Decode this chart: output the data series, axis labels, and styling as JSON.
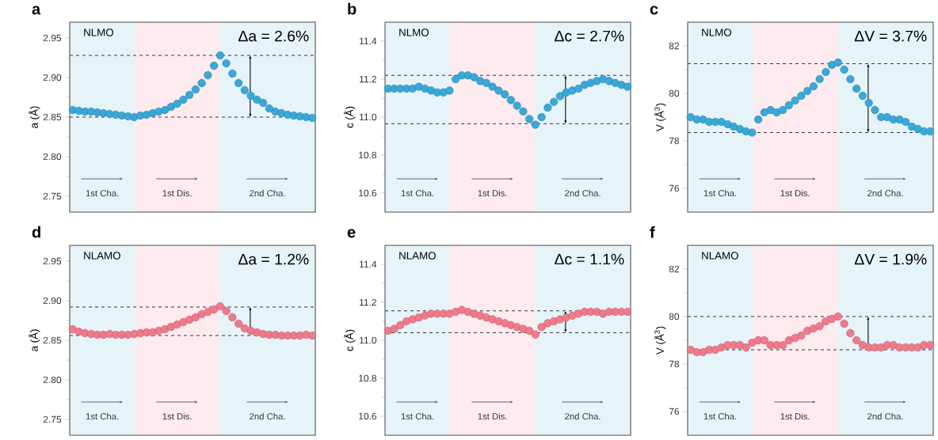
{
  "chart_data": [
    {
      "type": "scatter",
      "title": "a",
      "ylabel": "a (Å)",
      "marker": "circle",
      "categories": [
        null,
        null,
        null,
        null,
        null,
        null,
        null,
        null,
        null,
        null,
        null,
        null,
        null,
        null,
        null,
        null,
        null,
        null,
        null,
        null,
        null,
        null,
        null,
        null,
        null,
        null,
        null,
        null,
        null,
        null,
        null,
        null,
        null,
        null,
        null,
        null,
        null,
        null,
        null,
        null
      ],
      "series": [
        {
          "color": "#3aa8d8",
          "values": [
            2.859,
            2.858,
            2.857,
            2.857,
            2.856,
            2.855,
            2.854,
            2.853,
            2.852,
            2.851,
            2.85,
            2.852,
            2.853,
            2.855,
            2.857,
            2.859,
            2.863,
            2.867,
            2.872,
            2.878,
            2.885,
            2.893,
            2.903,
            2.915,
            2.928,
            2.918,
            2.905,
            2.893,
            2.884,
            2.877,
            2.872,
            2.868,
            2.861,
            2.857,
            2.855,
            2.853,
            2.852,
            2.851,
            2.85,
            2.849
          ]
        }
      ],
      "ylim": [
        2.73,
        2.97
      ],
      "yticks": [
        {
          "value": 2.75,
          "label": "2.75"
        },
        {
          "value": 2.8,
          "label": "2.80"
        },
        {
          "value": 2.85,
          "label": "2.85"
        },
        {
          "value": 2.9,
          "label": "2.90"
        },
        {
          "value": 2.95,
          "label": "2.95"
        }
      ],
      "ref_lines": [
        {
          "axis": "y",
          "value": 2.928,
          "line_style": "dashed"
        },
        {
          "axis": "y",
          "value": 2.85,
          "line_style": "dashed"
        }
      ],
      "annotations": [
        "NLMO",
        "Δa = 2.6%",
        "1st Cha.",
        "1st Dis.",
        "2nd Cha."
      ]
    },
    {
      "type": "scatter",
      "title": "b",
      "ylabel": "c (Å)",
      "marker": "circle",
      "categories": [
        null,
        null,
        null,
        null,
        null,
        null,
        null,
        null,
        null,
        null,
        null,
        null,
        null,
        null,
        null,
        null,
        null,
        null,
        null,
        null,
        null,
        null,
        null,
        null,
        null,
        null,
        null,
        null,
        null,
        null,
        null,
        null,
        null,
        null,
        null,
        null,
        null,
        null,
        null,
        null
      ],
      "series": [
        {
          "color": "#3aa8d8",
          "values": [
            11.15,
            11.15,
            11.15,
            11.15,
            11.15,
            11.16,
            11.15,
            11.14,
            11.13,
            11.13,
            11.14,
            11.2,
            11.22,
            11.22,
            11.21,
            11.19,
            11.18,
            11.16,
            11.14,
            11.12,
            11.09,
            11.06,
            11.03,
            10.99,
            10.96,
            11.0,
            11.05,
            11.08,
            11.11,
            11.13,
            11.14,
            11.15,
            11.17,
            11.18,
            11.19,
            11.2,
            11.19,
            11.18,
            11.17,
            11.16
          ]
        }
      ],
      "ylim": [
        10.5,
        11.5
      ],
      "yticks": [
        {
          "value": 10.6,
          "label": "10.6"
        },
        {
          "value": 10.8,
          "label": "10.8"
        },
        {
          "value": 11.0,
          "label": "11.0"
        },
        {
          "value": 11.2,
          "label": "11.2"
        },
        {
          "value": 11.4,
          "label": "11.4"
        }
      ],
      "ref_lines": [
        {
          "axis": "y",
          "value": 11.22,
          "line_style": "dashed"
        },
        {
          "axis": "y",
          "value": 10.965,
          "line_style": "dashed"
        }
      ],
      "annotations": [
        "NLMO",
        "Δc = 2.7%",
        "1st Cha.",
        "1st Dis.",
        "2nd Cha."
      ]
    },
    {
      "type": "scatter",
      "title": "c",
      "ylabel": "V (Å$^{3}$)",
      "marker": "circle",
      "categories": [
        null,
        null,
        null,
        null,
        null,
        null,
        null,
        null,
        null,
        null,
        null,
        null,
        null,
        null,
        null,
        null,
        null,
        null,
        null,
        null,
        null,
        null,
        null,
        null,
        null,
        null,
        null,
        null,
        null,
        null,
        null,
        null,
        null,
        null,
        null,
        null,
        null,
        null,
        null,
        null
      ],
      "series": [
        {
          "color": "#3aa8d8",
          "values": [
            79.0,
            78.9,
            78.9,
            78.8,
            78.8,
            78.8,
            78.7,
            78.6,
            78.5,
            78.4,
            78.35,
            78.9,
            79.2,
            79.3,
            79.2,
            79.3,
            79.5,
            79.7,
            79.9,
            80.1,
            80.3,
            80.6,
            80.9,
            81.2,
            81.3,
            81.0,
            80.6,
            80.2,
            79.9,
            79.6,
            79.3,
            79.0,
            79.0,
            78.9,
            78.9,
            78.8,
            78.6,
            78.5,
            78.4,
            78.4
          ]
        }
      ],
      "ylim": [
        75,
        83
      ],
      "yticks": [
        76,
        78,
        80,
        82
      ],
      "ref_lines": [
        {
          "axis": "y",
          "value": 81.25,
          "line_style": "dashed"
        },
        {
          "axis": "y",
          "value": 78.35,
          "line_style": "dashed"
        }
      ],
      "annotations": [
        "NLMO",
        "ΔV = 3.7%",
        "1st Cha.",
        "1st Dis.",
        "2nd Cha."
      ]
    },
    {
      "type": "scatter",
      "title": "d",
      "ylabel": "a (Å)",
      "marker": "circle",
      "categories": [
        null,
        null,
        null,
        null,
        null,
        null,
        null,
        null,
        null,
        null,
        null,
        null,
        null,
        null,
        null,
        null,
        null,
        null,
        null,
        null,
        null,
        null,
        null,
        null,
        null,
        null,
        null,
        null,
        null,
        null,
        null,
        null,
        null,
        null,
        null,
        null,
        null,
        null,
        null,
        null
      ],
      "series": [
        {
          "color": "#f07a8a",
          "values": [
            2.864,
            2.861,
            2.859,
            2.858,
            2.857,
            2.857,
            2.858,
            2.857,
            2.857,
            2.857,
            2.858,
            2.859,
            2.86,
            2.86,
            2.862,
            2.864,
            2.867,
            2.87,
            2.873,
            2.876,
            2.879,
            2.883,
            2.886,
            2.889,
            2.893,
            2.887,
            2.879,
            2.871,
            2.865,
            2.862,
            2.86,
            2.858,
            2.857,
            2.857,
            2.856,
            2.856,
            2.856,
            2.856,
            2.857,
            2.856
          ]
        }
      ],
      "ylim": [
        2.73,
        2.97
      ],
      "yticks": [
        {
          "value": 2.75,
          "label": "2.75"
        },
        {
          "value": 2.8,
          "label": "2.80"
        },
        {
          "value": 2.85,
          "label": "2.85"
        },
        {
          "value": 2.9,
          "label": "2.90"
        },
        {
          "value": 2.95,
          "label": "2.95"
        }
      ],
      "ref_lines": [
        {
          "axis": "y",
          "value": 2.892,
          "line_style": "dashed"
        },
        {
          "axis": "y",
          "value": 2.856,
          "line_style": "dashed"
        }
      ],
      "annotations": [
        "NLAMO",
        "Δa = 1.2%",
        "1st Cha.",
        "1st Dis.",
        "2nd Cha."
      ]
    },
    {
      "type": "scatter",
      "title": "e",
      "ylabel": "c (Å)",
      "marker": "circle",
      "categories": [
        null,
        null,
        null,
        null,
        null,
        null,
        null,
        null,
        null,
        null,
        null,
        null,
        null,
        null,
        null,
        null,
        null,
        null,
        null,
        null,
        null,
        null,
        null,
        null,
        null,
        null,
        null,
        null,
        null,
        null,
        null,
        null,
        null,
        null,
        null,
        null,
        null,
        null,
        null,
        null
      ],
      "series": [
        {
          "color": "#f07a8a",
          "values": [
            11.05,
            11.06,
            11.08,
            11.1,
            11.11,
            11.12,
            11.13,
            11.14,
            11.14,
            11.14,
            11.14,
            11.15,
            11.16,
            11.15,
            11.14,
            11.13,
            11.12,
            11.11,
            11.1,
            11.09,
            11.08,
            11.07,
            11.06,
            11.05,
            11.03,
            11.07,
            11.09,
            11.1,
            11.11,
            11.12,
            11.13,
            11.14,
            11.15,
            11.15,
            11.15,
            11.14,
            11.15,
            11.15,
            11.15,
            11.15
          ]
        }
      ],
      "ylim": [
        10.5,
        11.5
      ],
      "yticks": [
        {
          "value": 10.6,
          "label": "10.6"
        },
        {
          "value": 10.8,
          "label": "10.8"
        },
        {
          "value": 11.0,
          "label": "11.0"
        },
        {
          "value": 11.2,
          "label": "11.2"
        },
        {
          "value": 11.4,
          "label": "11.4"
        }
      ],
      "ref_lines": [
        {
          "axis": "y",
          "value": 11.155,
          "line_style": "dashed"
        },
        {
          "axis": "y",
          "value": 11.04,
          "line_style": "dashed"
        }
      ],
      "annotations": [
        "NLAMO",
        "Δc = 1.1%",
        "1st Cha.",
        "1st Dis.",
        "2nd Cha."
      ]
    },
    {
      "type": "scatter",
      "title": "f",
      "ylabel": "V (Å$^{3}$)",
      "marker": "circle",
      "categories": [
        null,
        null,
        null,
        null,
        null,
        null,
        null,
        null,
        null,
        null,
        null,
        null,
        null,
        null,
        null,
        null,
        null,
        null,
        null,
        null,
        null,
        null,
        null,
        null,
        null,
        null,
        null,
        null,
        null,
        null,
        null,
        null,
        null,
        null,
        null,
        null,
        null,
        null,
        null,
        null
      ],
      "series": [
        {
          "color": "#f07a8a",
          "values": [
            78.6,
            78.5,
            78.5,
            78.6,
            78.6,
            78.7,
            78.8,
            78.8,
            78.8,
            78.7,
            78.9,
            79.0,
            79.0,
            78.8,
            78.8,
            78.8,
            79.0,
            79.1,
            79.2,
            79.4,
            79.5,
            79.6,
            79.8,
            79.9,
            80.0,
            79.7,
            79.3,
            79.0,
            78.8,
            78.7,
            78.7,
            78.7,
            78.8,
            78.8,
            78.7,
            78.7,
            78.7,
            78.7,
            78.8,
            78.8
          ]
        }
      ],
      "ylim": [
        75,
        83
      ],
      "yticks": [
        76,
        78,
        80,
        82
      ],
      "ref_lines": [
        {
          "axis": "y",
          "value": 80.0,
          "line_style": "dashed"
        },
        {
          "axis": "y",
          "value": 78.6,
          "line_style": "dashed"
        }
      ],
      "annotations": [
        "NLAMO",
        "ΔV = 1.9%",
        "1st Cha.",
        "1st Dis.",
        "2nd Cha."
      ]
    }
  ]
}
